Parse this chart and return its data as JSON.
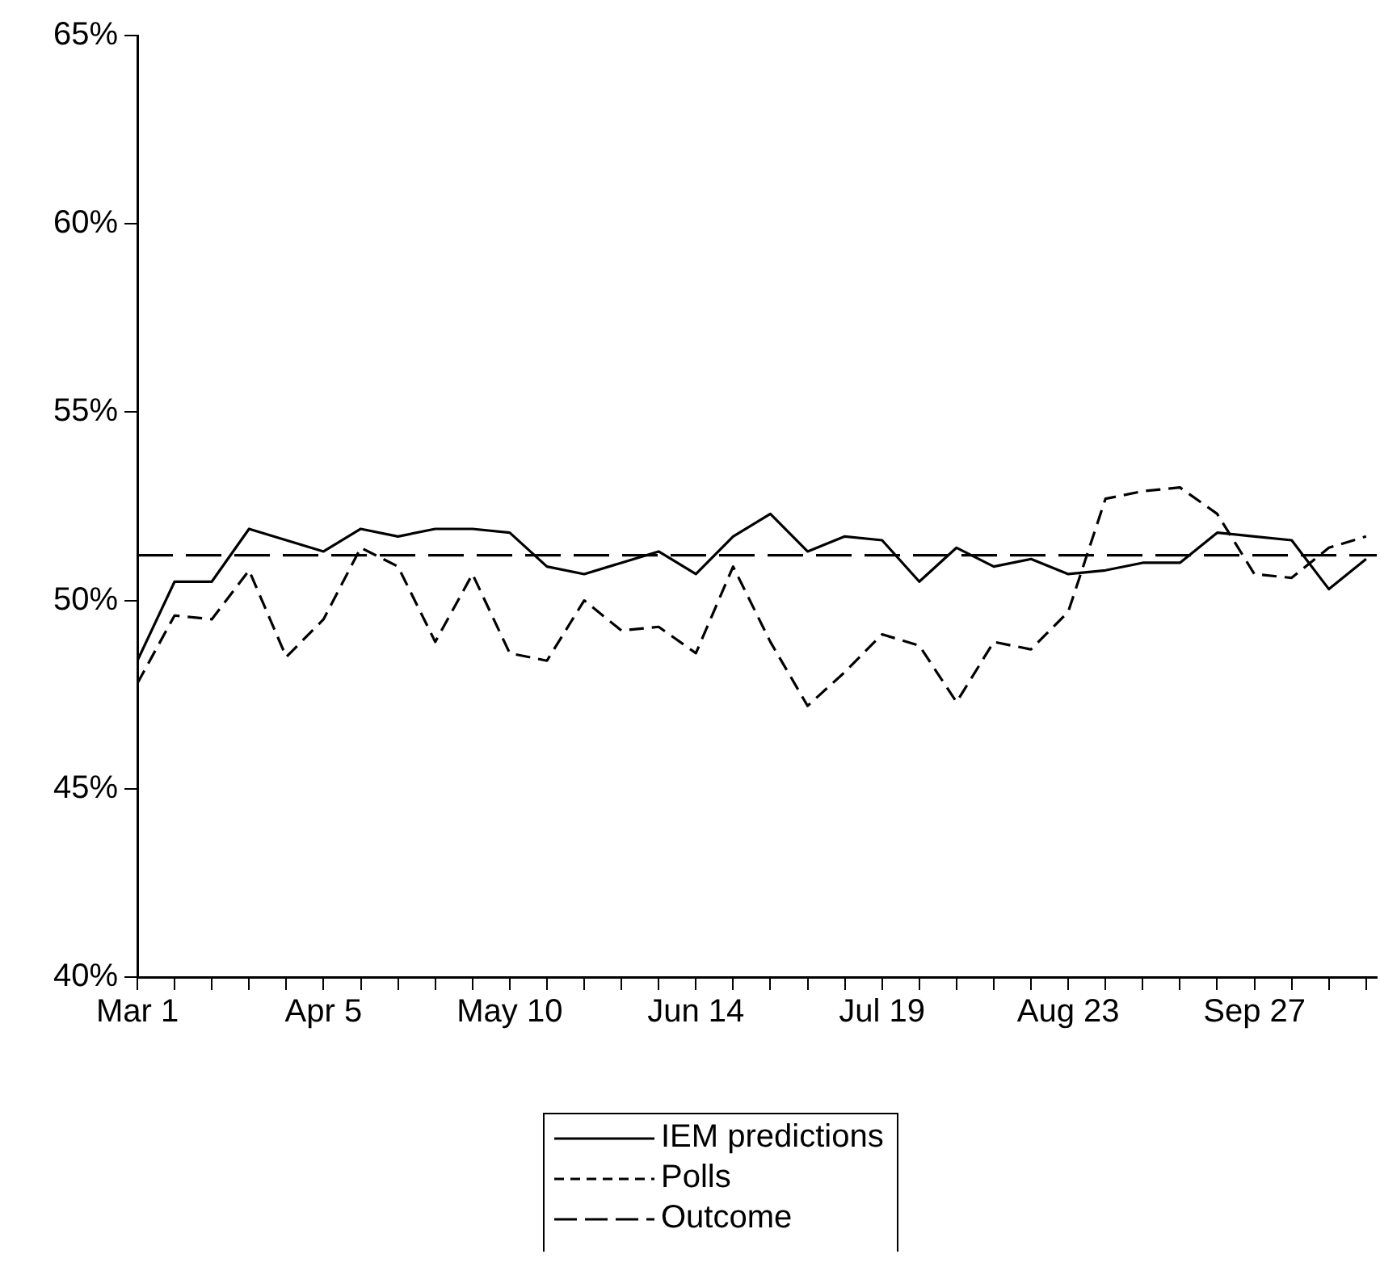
{
  "chart_data": {
    "type": "line",
    "x": [
      "--03-01",
      "--03-08",
      "--03-15",
      "--03-22",
      "--03-29",
      "--04-05",
      "--04-12",
      "--04-19",
      "--04-26",
      "--05-03",
      "--05-10",
      "--05-17",
      "--05-24",
      "--05-31",
      "--06-07",
      "--06-14",
      "--06-21",
      "--06-28",
      "--07-05",
      "--07-12",
      "--07-19",
      "--07-26",
      "--08-02",
      "--08-09",
      "--08-16",
      "--08-23",
      "--08-30",
      "--09-06",
      "--09-13",
      "--09-20",
      "--09-27",
      "--10-04",
      "--10-11",
      "--10-18"
    ],
    "series": [
      {
        "name": "IEM predictions",
        "color": "#000000",
        "line_style": "solid",
        "values": [
          48.4,
          50.5,
          50.5,
          51.9,
          51.6,
          51.3,
          51.9,
          51.7,
          51.9,
          51.9,
          51.8,
          50.9,
          50.7,
          51.0,
          51.3,
          50.7,
          51.7,
          52.3,
          51.3,
          51.7,
          51.6,
          50.5,
          51.4,
          50.9,
          51.1,
          50.7,
          50.8,
          51.0,
          51.0,
          51.8,
          51.7,
          51.6,
          50.3,
          51.1
        ]
      },
      {
        "name": "Polls",
        "color": "#000000",
        "line_style": "dashed",
        "values": [
          47.8,
          49.6,
          49.5,
          50.8,
          48.5,
          49.5,
          51.4,
          50.9,
          48.9,
          50.7,
          48.6,
          48.4,
          50.0,
          49.2,
          49.3,
          48.6,
          50.9,
          48.9,
          47.2,
          48.1,
          49.1,
          48.8,
          47.3,
          48.9,
          48.7,
          49.7,
          52.7,
          52.9,
          53.0,
          52.3,
          50.7,
          50.6,
          51.4,
          51.7
        ]
      }
    ],
    "ref_lines": [
      {
        "axis": "y",
        "value": 51.2,
        "label": "Outcome",
        "color": "#000000",
        "line_style": "dashed"
      }
    ],
    "xlim": [
      "--03-01",
      "--10-20"
    ],
    "xticks": [
      {
        "value": "--03-01",
        "label": "Mar 1"
      },
      {
        "value": "--03-08",
        "label": null
      },
      {
        "value": "--03-15",
        "label": null
      },
      {
        "value": "--03-22",
        "label": null
      },
      {
        "value": "--03-29",
        "label": null
      },
      {
        "value": "--04-05",
        "label": "Apr 5"
      },
      {
        "value": "--04-12",
        "label": null
      },
      {
        "value": "--04-19",
        "label": null
      },
      {
        "value": "--04-26",
        "label": null
      },
      {
        "value": "--05-03",
        "label": null
      },
      {
        "value": "--05-10",
        "label": "May 10"
      },
      {
        "value": "--05-17",
        "label": null
      },
      {
        "value": "--05-24",
        "label": null
      },
      {
        "value": "--05-31",
        "label": null
      },
      {
        "value": "--06-07",
        "label": null
      },
      {
        "value": "--06-14",
        "label": "Jun 14"
      },
      {
        "value": "--06-21",
        "label": null
      },
      {
        "value": "--06-28",
        "label": null
      },
      {
        "value": "--07-05",
        "label": null
      },
      {
        "value": "--07-12",
        "label": null
      },
      {
        "value": "--07-19",
        "label": "Jul 19"
      },
      {
        "value": "--07-26",
        "label": null
      },
      {
        "value": "--08-02",
        "label": null
      },
      {
        "value": "--08-09",
        "label": null
      },
      {
        "value": "--08-16",
        "label": null
      },
      {
        "value": "--08-23",
        "label": "Aug 23"
      },
      {
        "value": "--08-30",
        "label": null
      },
      {
        "value": "--09-06",
        "label": null
      },
      {
        "value": "--09-13",
        "label": null
      },
      {
        "value": "--09-20",
        "label": null
      },
      {
        "value": "--09-27",
        "label": "Sep 27"
      },
      {
        "value": "--10-04",
        "label": null
      },
      {
        "value": "--10-11",
        "label": null
      },
      {
        "value": "--10-18",
        "label": null
      }
    ],
    "ylim": [
      40,
      65
    ],
    "yticks": [
      {
        "value": 40,
        "label": "40%"
      },
      {
        "value": 45,
        "label": "45%"
      },
      {
        "value": 50,
        "label": "50%"
      },
      {
        "value": 55,
        "label": "55%"
      },
      {
        "value": 60,
        "label": "60%"
      },
      {
        "value": 65,
        "label": "65%"
      }
    ],
    "grid": false,
    "legend": "bottom",
    "marker": "none"
  }
}
